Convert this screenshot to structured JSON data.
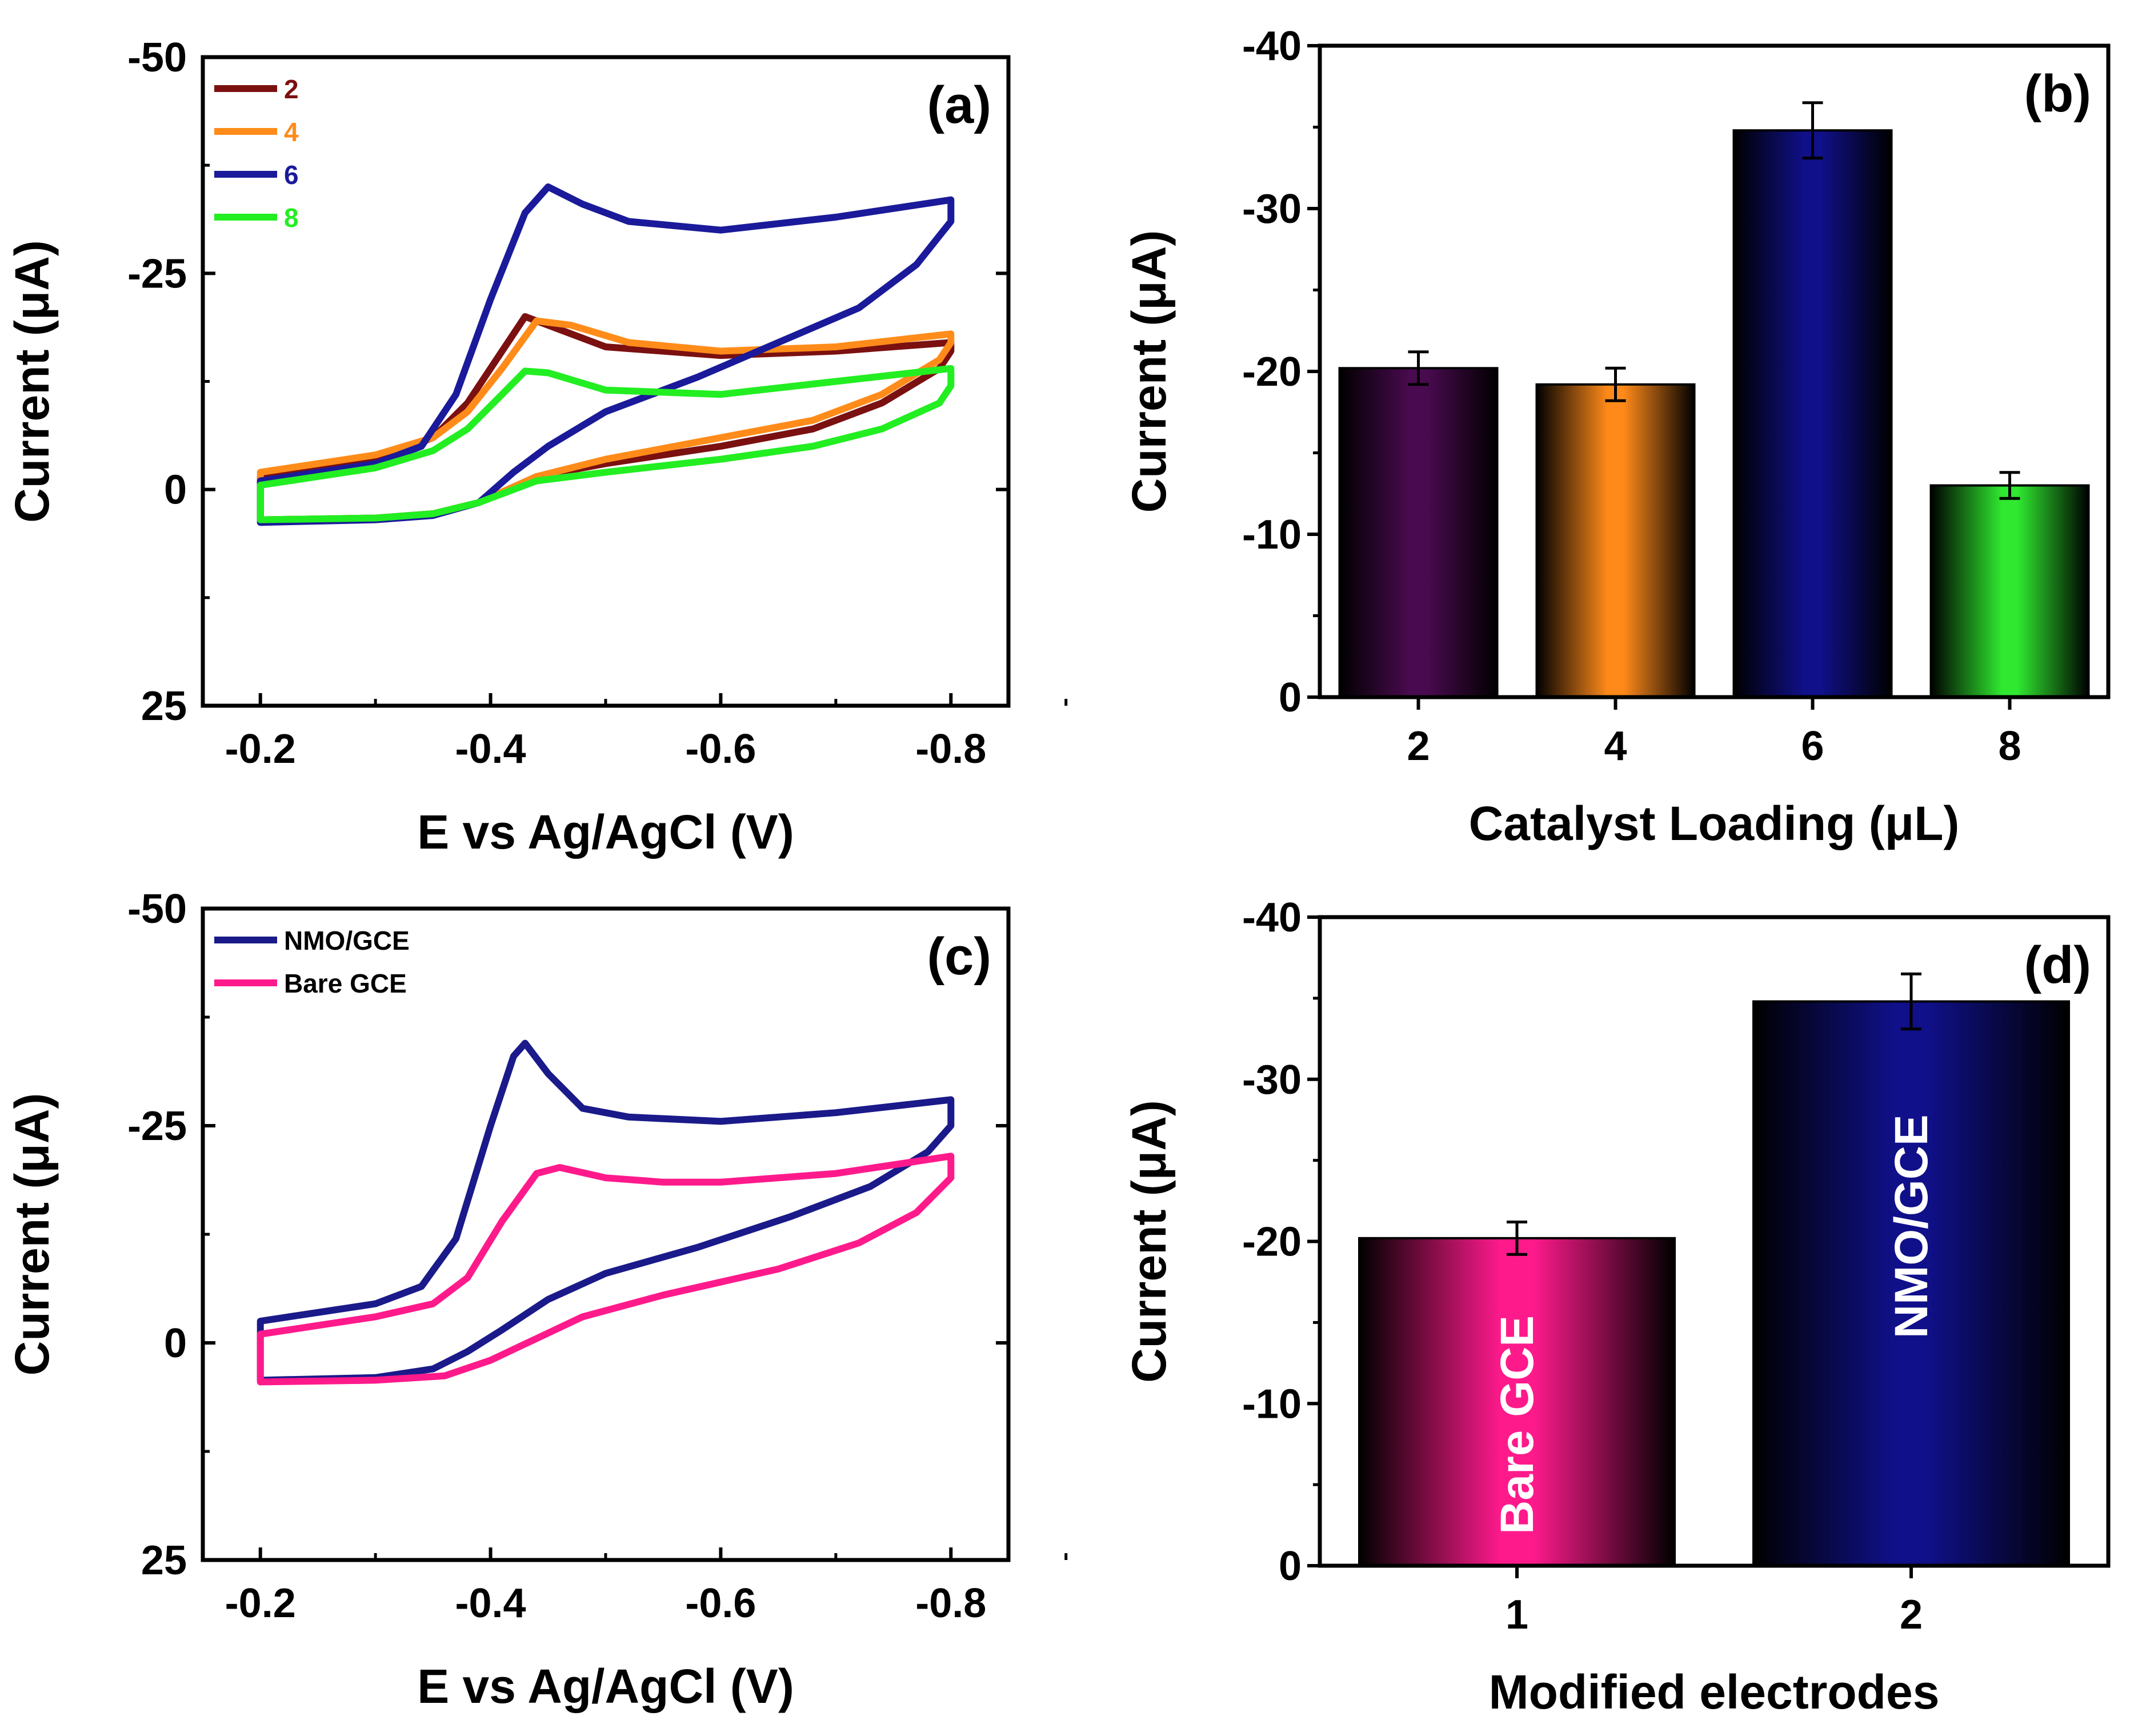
{
  "chart_data": [
    {
      "panel": "(a)",
      "type": "line",
      "xlabel": "E vs Ag/AgCl (V)",
      "ylabel": "Current (μA)",
      "xlim": [
        -0.15,
        -0.85
      ],
      "ylim": [
        25,
        -50
      ],
      "xticks": [
        "-0.2",
        "-0.4",
        "-0.6",
        "-0.8"
      ],
      "yticks": [
        "-50",
        "-25",
        "0",
        "25"
      ],
      "legend_position": "top-left",
      "series": [
        {
          "name": "2",
          "color": "#7b1010",
          "points": [
            [
              -0.2,
              -1.5
            ],
            [
              -0.25,
              -2.5
            ],
            [
              -0.3,
              -3.5
            ],
            [
              -0.35,
              -6
            ],
            [
              -0.38,
              -10
            ],
            [
              -0.41,
              -16
            ],
            [
              -0.43,
              -20
            ],
            [
              -0.45,
              -19
            ],
            [
              -0.5,
              -16.5
            ],
            [
              -0.6,
              -15.5
            ],
            [
              -0.7,
              -16
            ],
            [
              -0.8,
              -17
            ],
            [
              -0.8,
              -16
            ],
            [
              -0.79,
              -14
            ],
            [
              -0.74,
              -10
            ],
            [
              -0.68,
              -7
            ],
            [
              -0.6,
              -5
            ],
            [
              -0.5,
              -3
            ],
            [
              -0.44,
              -1.5
            ],
            [
              -0.39,
              1.5
            ],
            [
              -0.35,
              2.8
            ],
            [
              -0.3,
              3.3
            ],
            [
              -0.2,
              3.5
            ]
          ]
        },
        {
          "name": "4",
          "color": "#ff8c1a",
          "points": [
            [
              -0.2,
              -2
            ],
            [
              -0.25,
              -3
            ],
            [
              -0.3,
              -4
            ],
            [
              -0.35,
              -6
            ],
            [
              -0.38,
              -9
            ],
            [
              -0.41,
              -14
            ],
            [
              -0.44,
              -19.5
            ],
            [
              -0.47,
              -19
            ],
            [
              -0.52,
              -17
            ],
            [
              -0.6,
              -16
            ],
            [
              -0.7,
              -16.5
            ],
            [
              -0.8,
              -18
            ],
            [
              -0.8,
              -17
            ],
            [
              -0.79,
              -15
            ],
            [
              -0.74,
              -11
            ],
            [
              -0.68,
              -8
            ],
            [
              -0.6,
              -6
            ],
            [
              -0.5,
              -3.5
            ],
            [
              -0.44,
              -1.5
            ],
            [
              -0.39,
              1.5
            ],
            [
              -0.35,
              2.8
            ],
            [
              -0.3,
              3.3
            ],
            [
              -0.2,
              3.5
            ]
          ]
        },
        {
          "name": "6",
          "color": "#1a1a9a",
          "points": [
            [
              -0.2,
              -1
            ],
            [
              -0.25,
              -2
            ],
            [
              -0.3,
              -3
            ],
            [
              -0.34,
              -5
            ],
            [
              -0.37,
              -11
            ],
            [
              -0.4,
              -22
            ],
            [
              -0.43,
              -32
            ],
            [
              -0.45,
              -35
            ],
            [
              -0.48,
              -33
            ],
            [
              -0.52,
              -31
            ],
            [
              -0.6,
              -30
            ],
            [
              -0.7,
              -31.5
            ],
            [
              -0.8,
              -33.5
            ],
            [
              -0.8,
              -31
            ],
            [
              -0.77,
              -26
            ],
            [
              -0.72,
              -21
            ],
            [
              -0.65,
              -17
            ],
            [
              -0.58,
              -13
            ],
            [
              -0.5,
              -9
            ],
            [
              -0.45,
              -5
            ],
            [
              -0.42,
              -2
            ],
            [
              -0.39,
              1.5
            ],
            [
              -0.35,
              3
            ],
            [
              -0.3,
              3.5
            ],
            [
              -0.2,
              3.8
            ]
          ]
        },
        {
          "name": "8",
          "color": "#22ee22",
          "points": [
            [
              -0.2,
              -0.5
            ],
            [
              -0.25,
              -1.5
            ],
            [
              -0.3,
              -2.5
            ],
            [
              -0.35,
              -4.5
            ],
            [
              -0.38,
              -7
            ],
            [
              -0.41,
              -11
            ],
            [
              -0.43,
              -13.7
            ],
            [
              -0.45,
              -13.5
            ],
            [
              -0.5,
              -11.5
            ],
            [
              -0.6,
              -11
            ],
            [
              -0.7,
              -12.5
            ],
            [
              -0.8,
              -14
            ],
            [
              -0.8,
              -12
            ],
            [
              -0.79,
              -10
            ],
            [
              -0.74,
              -7
            ],
            [
              -0.68,
              -5
            ],
            [
              -0.6,
              -3.5
            ],
            [
              -0.5,
              -2
            ],
            [
              -0.44,
              -1
            ],
            [
              -0.39,
              1.5
            ],
            [
              -0.35,
              2.8
            ],
            [
              -0.3,
              3.3
            ],
            [
              -0.2,
              3.5
            ]
          ]
        }
      ]
    },
    {
      "panel": "(b)",
      "type": "bar",
      "xlabel": "Catalyst Loading (μL)",
      "ylabel": "Current (μA)",
      "ylim": [
        0,
        -40
      ],
      "yticks": [
        "-40",
        "-30",
        "-20",
        "-10",
        "0"
      ],
      "categories": [
        "2",
        "4",
        "6",
        "8"
      ],
      "values": [
        -20.2,
        -19.2,
        -34.8,
        -13
      ],
      "errors": [
        1,
        1,
        1.7,
        0.8
      ],
      "colors": [
        "#4a0a50",
        "#ff8a1a",
        "#10108a",
        "#2fe82f"
      ]
    },
    {
      "panel": "(c)",
      "type": "line",
      "xlabel": "E  vs Ag/AgCl (V)",
      "ylabel": "Current (μA)",
      "xlim": [
        -0.15,
        -0.85
      ],
      "ylim": [
        25,
        -50
      ],
      "xticks": [
        "-0.2",
        "-0.4",
        "-0.6",
        "-0.8"
      ],
      "yticks": [
        "-50",
        "-25",
        "0",
        "25"
      ],
      "legend_position": "top-left",
      "series": [
        {
          "name": "NMO/GCE",
          "color": "#1a1a8a",
          "points": [
            [
              -0.2,
              -2.5
            ],
            [
              -0.25,
              -3.5
            ],
            [
              -0.3,
              -4.5
            ],
            [
              -0.34,
              -6.5
            ],
            [
              -0.37,
              -12
            ],
            [
              -0.4,
              -25
            ],
            [
              -0.42,
              -33
            ],
            [
              -0.43,
              -34.5
            ],
            [
              -0.45,
              -31
            ],
            [
              -0.48,
              -27
            ],
            [
              -0.52,
              -26
            ],
            [
              -0.6,
              -25.5
            ],
            [
              -0.7,
              -26.5
            ],
            [
              -0.8,
              -28
            ],
            [
              -0.8,
              -25
            ],
            [
              -0.78,
              -22
            ],
            [
              -0.73,
              -18
            ],
            [
              -0.66,
              -14.5
            ],
            [
              -0.58,
              -11
            ],
            [
              -0.5,
              -8
            ],
            [
              -0.45,
              -5
            ],
            [
              -0.41,
              -1.5
            ],
            [
              -0.38,
              1
            ],
            [
              -0.35,
              3
            ],
            [
              -0.3,
              4
            ],
            [
              -0.2,
              4.3
            ]
          ]
        },
        {
          "name": "Bare GCE",
          "color": "#ff1a8c",
          "points": [
            [
              -0.2,
              -1
            ],
            [
              -0.25,
              -2
            ],
            [
              -0.3,
              -3
            ],
            [
              -0.35,
              -4.5
            ],
            [
              -0.38,
              -7.5
            ],
            [
              -0.41,
              -14
            ],
            [
              -0.44,
              -19.5
            ],
            [
              -0.46,
              -20.2
            ],
            [
              -0.5,
              -19
            ],
            [
              -0.55,
              -18.5
            ],
            [
              -0.6,
              -18.5
            ],
            [
              -0.7,
              -19.5
            ],
            [
              -0.8,
              -21.5
            ],
            [
              -0.8,
              -19
            ],
            [
              -0.77,
              -15
            ],
            [
              -0.72,
              -11.5
            ],
            [
              -0.65,
              -8.5
            ],
            [
              -0.55,
              -5.5
            ],
            [
              -0.48,
              -3
            ],
            [
              -0.44,
              -0.5
            ],
            [
              -0.4,
              2
            ],
            [
              -0.36,
              3.8
            ],
            [
              -0.3,
              4.3
            ],
            [
              -0.2,
              4.5
            ]
          ]
        }
      ]
    },
    {
      "panel": "(d)",
      "type": "bar",
      "xlabel": "Modified electrodes",
      "ylabel": "Current (μA)",
      "ylim": [
        0,
        -40
      ],
      "yticks": [
        "-40",
        "-30",
        "-20",
        "-10",
        "0"
      ],
      "categories": [
        "1",
        "2"
      ],
      "values": [
        -20.2,
        -34.8
      ],
      "errors": [
        1,
        1.7
      ],
      "bar_labels": [
        "Bare GCE",
        "NMO/GCE"
      ],
      "colors": [
        "#ff1a8c",
        "#10108a"
      ]
    }
  ]
}
